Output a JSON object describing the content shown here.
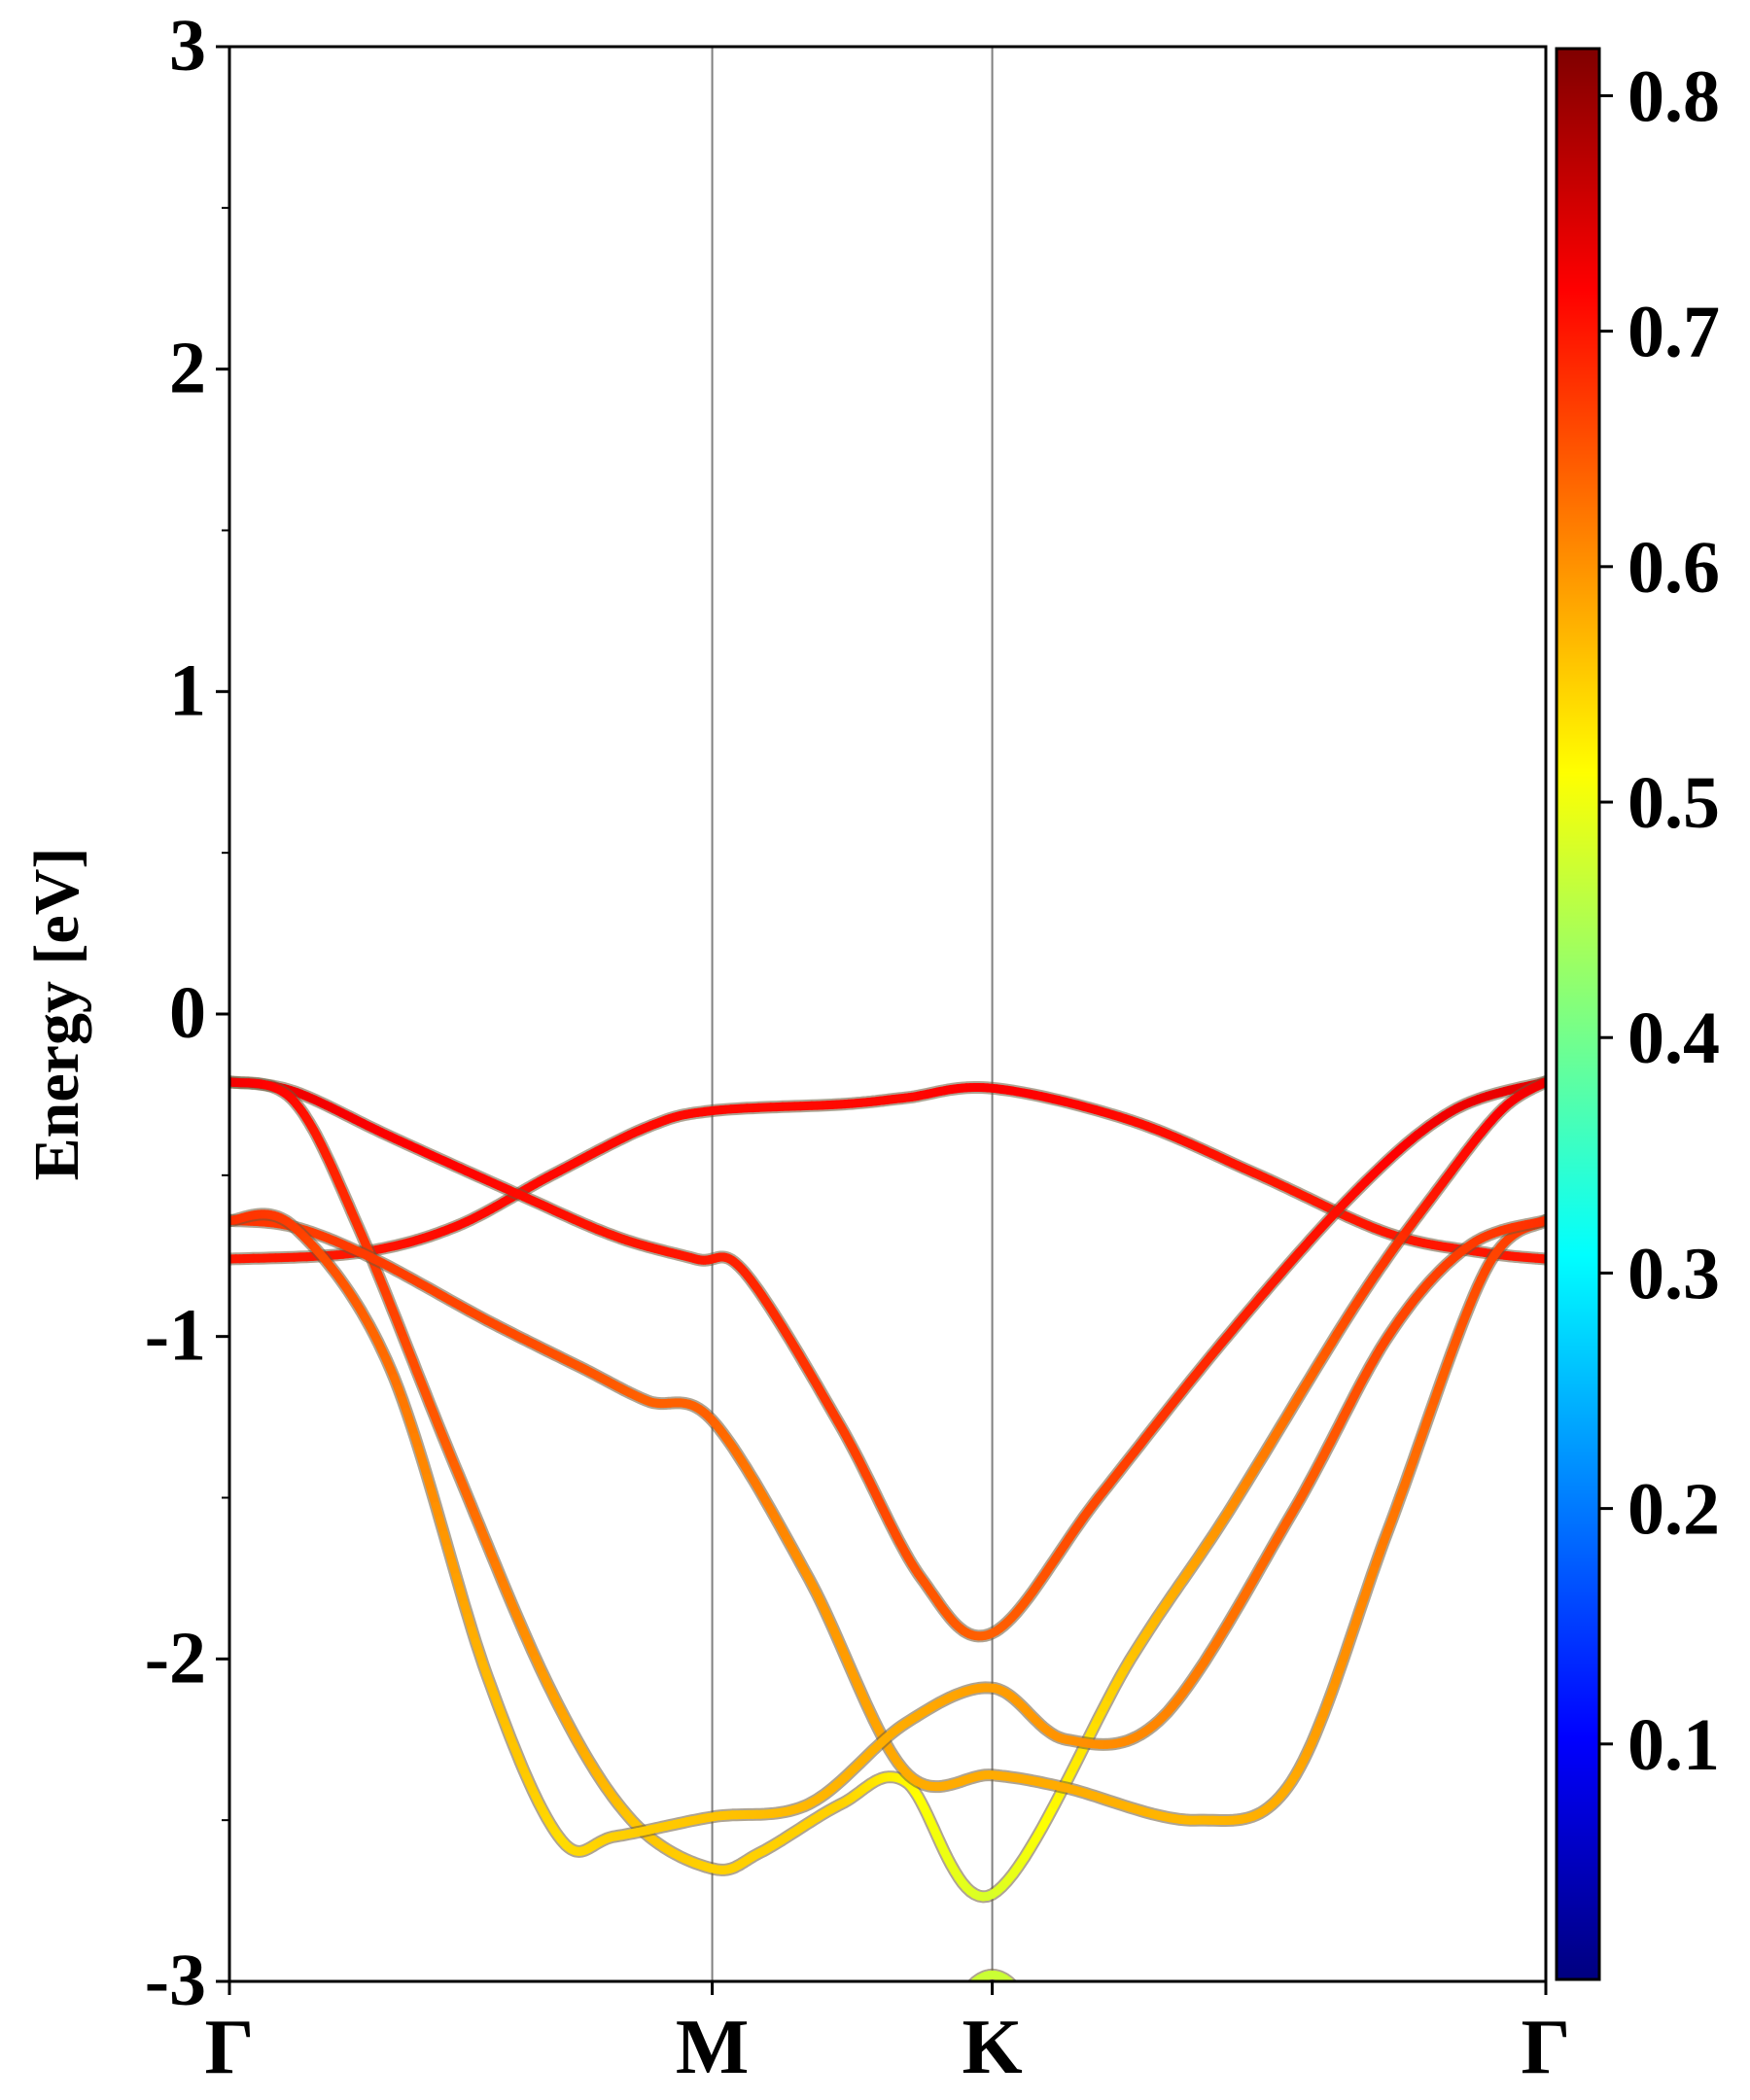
{
  "chart_data": {
    "type": "line",
    "title": "",
    "xlabel": "",
    "ylabel": "Energy [eV]",
    "ylim": [
      -3,
      3
    ],
    "y_ticks": [
      3,
      2,
      1,
      0,
      -1,
      -2,
      -3
    ],
    "y_tick_labels": [
      "3",
      "2",
      "1",
      "0",
      "-1",
      "-2",
      "-3"
    ],
    "x_ticks": [
      {
        "label": "Γ",
        "x": 0.0
      },
      {
        "label": "M",
        "x": 1.5
      },
      {
        "label": "K",
        "x": 2.37
      },
      {
        "label": "Γ",
        "x": 4.09
      }
    ],
    "x_range": [
      0.0,
      4.09
    ],
    "high_symmetry_lines": [
      1.5,
      2.37
    ],
    "colorbar": {
      "colormap": "jet",
      "range": [
        0.0,
        0.82
      ],
      "ticks": [
        0.8,
        0.7,
        0.6,
        0.5,
        0.4,
        0.3,
        0.2,
        0.1
      ],
      "tick_labels": [
        "0.8",
        "0.7",
        "0.6",
        "0.5",
        "0.4",
        "0.3",
        "0.2",
        "0.1"
      ]
    },
    "series": [
      {
        "x": [
          0.0,
          0.4,
          0.7,
          1.0,
          1.3,
          1.5,
          1.9,
          2.1,
          2.37,
          2.8,
          3.2,
          3.6,
          3.9,
          4.09
        ],
        "y": [
          -0.76,
          -0.74,
          -0.66,
          -0.5,
          -0.35,
          -0.3,
          -0.28,
          -0.26,
          -0.23,
          -0.33,
          -0.5,
          -0.68,
          -0.74,
          -0.76
        ],
        "c": [
          0.7,
          0.7,
          0.71,
          0.71,
          0.71,
          0.71,
          0.71,
          0.71,
          0.72,
          0.71,
          0.7,
          0.7,
          0.7,
          0.7
        ]
      },
      {
        "x": [
          0.0,
          0.2,
          0.5,
          0.9,
          1.2,
          1.45,
          1.6,
          1.9,
          2.15,
          2.37,
          2.7,
          3.1,
          3.5,
          3.8,
          4.09
        ],
        "y": [
          -0.21,
          -0.24,
          -0.38,
          -0.56,
          -0.69,
          -0.76,
          -0.8,
          -1.28,
          -1.75,
          -1.92,
          -1.5,
          -1.0,
          -0.55,
          -0.3,
          -0.21
        ],
        "c": [
          0.73,
          0.73,
          0.72,
          0.71,
          0.7,
          0.7,
          0.69,
          0.67,
          0.65,
          0.64,
          0.66,
          0.69,
          0.71,
          0.73,
          0.74
        ]
      },
      {
        "x": [
          0.0,
          0.2,
          0.4,
          0.7,
          1.0,
          1.25,
          1.5,
          1.65,
          1.9,
          2.1,
          2.37,
          2.8,
          3.1,
          3.5,
          3.75,
          3.95,
          4.09
        ],
        "y": [
          -0.21,
          -0.27,
          -0.66,
          -1.4,
          -2.1,
          -2.5,
          -2.65,
          -2.6,
          -2.45,
          -2.38,
          -2.73,
          -2.0,
          -1.55,
          -0.9,
          -0.55,
          -0.3,
          -0.21
        ],
        "c": [
          0.73,
          0.71,
          0.68,
          0.64,
          0.59,
          0.56,
          0.55,
          0.55,
          0.55,
          0.52,
          0.48,
          0.56,
          0.6,
          0.66,
          0.7,
          0.72,
          0.73
        ]
      },
      {
        "x": [
          0.0,
          0.2,
          0.45,
          0.8,
          1.1,
          1.3,
          1.5,
          1.8,
          2.1,
          2.37,
          2.6,
          3.0,
          3.3,
          3.6,
          3.9,
          4.09
        ],
        "y": [
          -0.64,
          -0.66,
          -0.76,
          -0.95,
          -1.1,
          -1.2,
          -1.26,
          -1.75,
          -2.35,
          -2.36,
          -2.4,
          -2.5,
          -2.38,
          -1.6,
          -0.8,
          -0.64
        ],
        "c": [
          0.68,
          0.67,
          0.67,
          0.66,
          0.65,
          0.64,
          0.64,
          0.6,
          0.58,
          0.58,
          0.58,
          0.57,
          0.58,
          0.62,
          0.66,
          0.68
        ]
      },
      {
        "x": [
          0.0,
          0.2,
          0.5,
          0.8,
          1.03,
          1.2,
          1.5,
          1.8,
          2.1,
          2.37,
          2.6,
          2.9,
          3.3,
          3.6,
          3.85,
          4.09
        ],
        "y": [
          -0.64,
          -0.66,
          -1.1,
          -2.05,
          -2.56,
          -2.55,
          -2.49,
          -2.45,
          -2.2,
          -2.09,
          -2.25,
          -2.18,
          -1.55,
          -1.0,
          -0.72,
          -0.64
        ],
        "c": [
          0.68,
          0.67,
          0.63,
          0.57,
          0.54,
          0.55,
          0.56,
          0.57,
          0.58,
          0.59,
          0.6,
          0.61,
          0.64,
          0.66,
          0.67,
          0.68
        ]
      },
      {
        "x": [
          2.28,
          2.32,
          2.37,
          2.42,
          2.46
        ],
        "y": [
          -3.05,
          -3.0,
          -2.98,
          -3.0,
          -3.05
        ],
        "c": [
          0.47,
          0.47,
          0.47,
          0.47,
          0.47
        ]
      }
    ]
  }
}
